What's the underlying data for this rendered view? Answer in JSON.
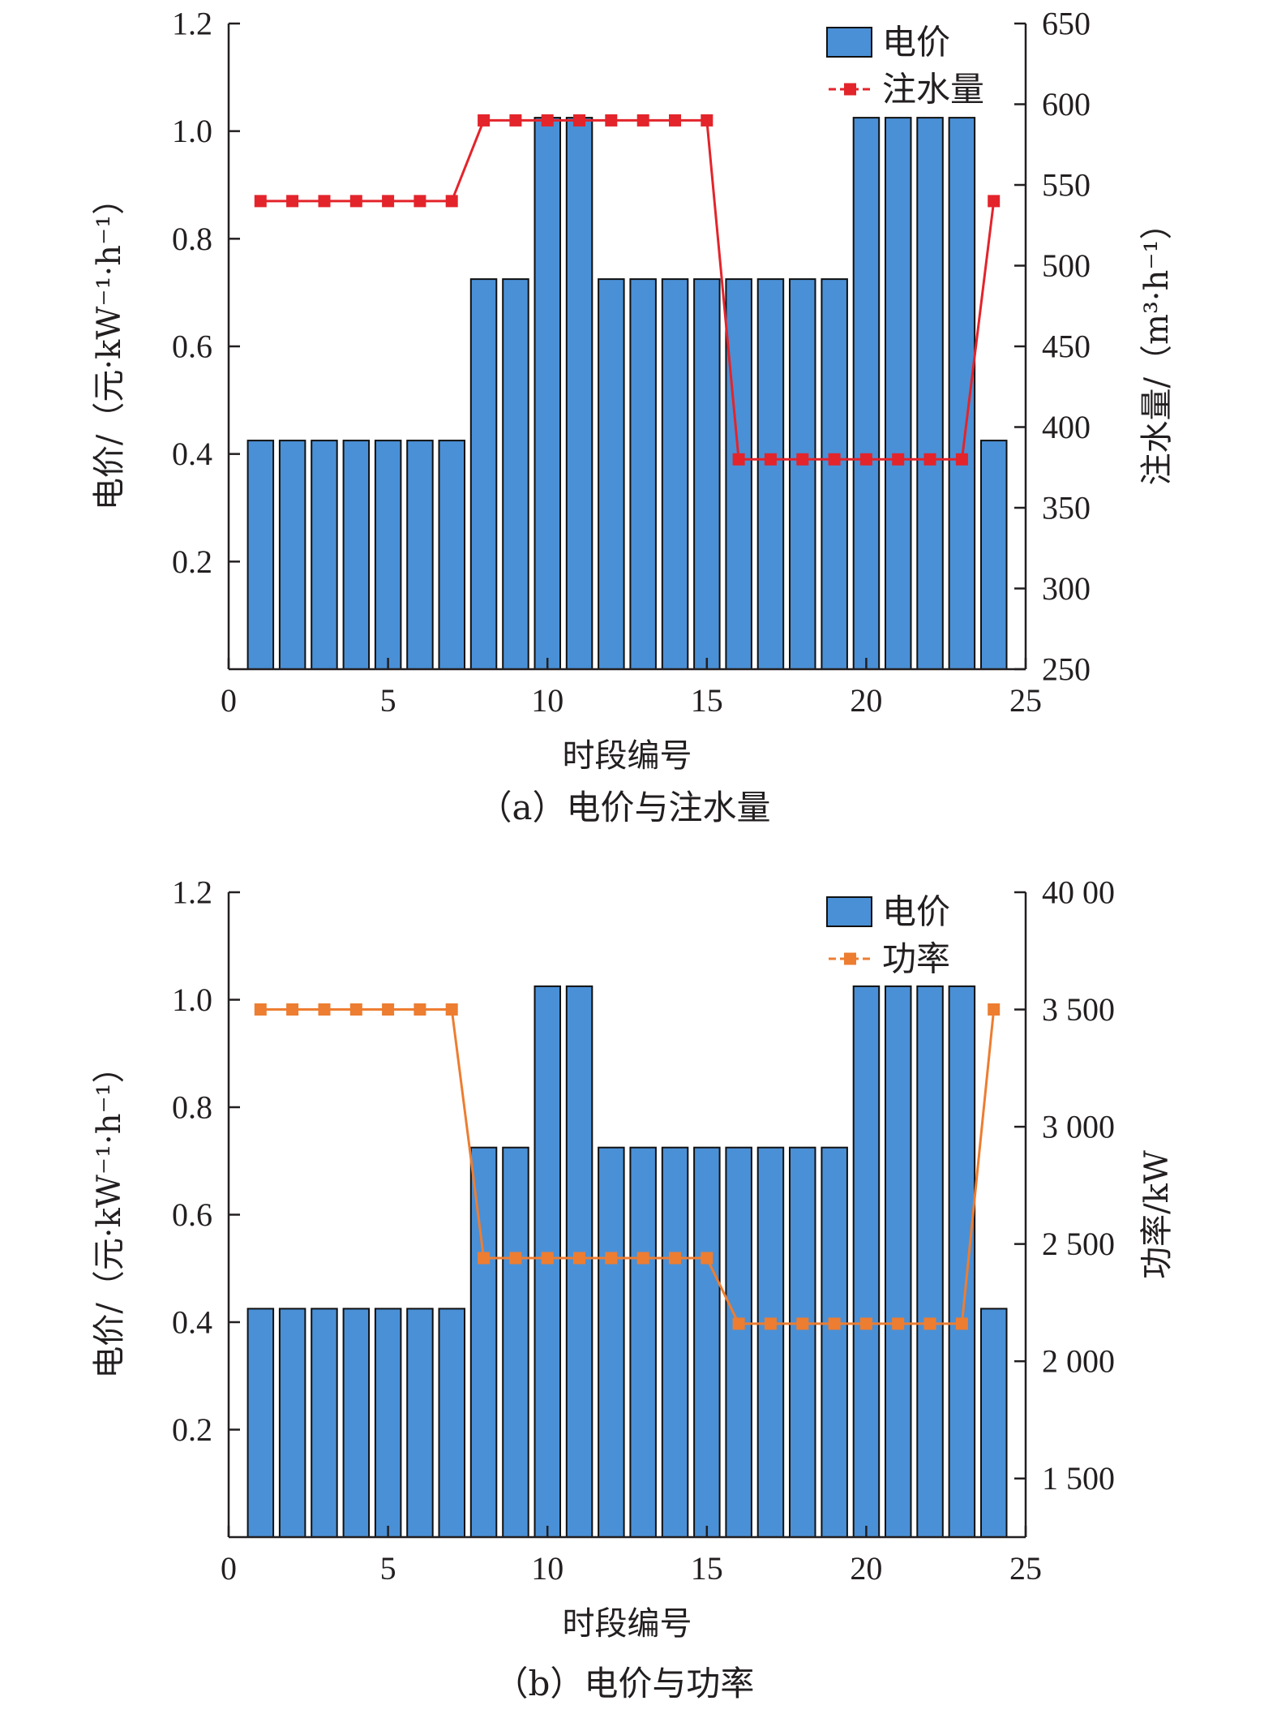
{
  "chart_data": [
    {
      "type": "bar+line",
      "caption": "（a）电价与注水量",
      "xlabel": "时段编号",
      "ylabel_left": "电价/（元·kW⁻¹·h⁻¹）",
      "ylabel_right": "注水量/（m³·h⁻¹）",
      "xlim": [
        0,
        25
      ],
      "ylim_left": [
        0,
        1.2
      ],
      "ylim_right": [
        250,
        650
      ],
      "x_ticks": [
        "0",
        "5",
        "10",
        "15",
        "20",
        "25"
      ],
      "y_left_ticks": [
        "0.2",
        "0.4",
        "0.6",
        "0.8",
        "1.0",
        "1.2"
      ],
      "y_right_ticks": [
        "250",
        "300",
        "350",
        "400",
        "450",
        "500",
        "550",
        "600",
        "650"
      ],
      "legend": [
        "电价",
        "注水量"
      ],
      "colors": {
        "bar": "#4a90d6",
        "line": "#e3242b"
      },
      "x": [
        1,
        2,
        3,
        4,
        5,
        6,
        7,
        8,
        9,
        10,
        11,
        12,
        13,
        14,
        15,
        16,
        17,
        18,
        19,
        20,
        21,
        22,
        23,
        24
      ],
      "series": [
        {
          "name": "电价",
          "axis": "left",
          "values": [
            0.425,
            0.425,
            0.425,
            0.425,
            0.425,
            0.425,
            0.425,
            0.725,
            0.725,
            1.025,
            1.025,
            0.725,
            0.725,
            0.725,
            0.725,
            0.725,
            0.725,
            0.725,
            0.725,
            1.025,
            1.025,
            1.025,
            1.025,
            0.425
          ]
        },
        {
          "name": "注水量",
          "axis": "right",
          "values": [
            540,
            540,
            540,
            540,
            540,
            540,
            540,
            590,
            590,
            590,
            590,
            590,
            590,
            590,
            590,
            380,
            380,
            380,
            380,
            380,
            380,
            380,
            380,
            540
          ]
        }
      ]
    },
    {
      "type": "bar+line",
      "caption": "（b）电价与功率",
      "xlabel": "时段编号",
      "ylabel_left": "电价/（元·kW⁻¹·h⁻¹）",
      "ylabel_right": "功率/kW",
      "xlim": [
        0,
        25
      ],
      "ylim_left": [
        0,
        1.2
      ],
      "ylim_right": [
        1250,
        4000
      ],
      "x_ticks": [
        "0",
        "5",
        "10",
        "15",
        "20",
        "25"
      ],
      "y_left_ticks": [
        "0.2",
        "0.4",
        "0.6",
        "0.8",
        "1.0",
        "1.2"
      ],
      "y_right_ticks": [
        "1 500",
        "2 000",
        "2 500",
        "3 000",
        "3 500",
        "40 00"
      ],
      "legend": [
        "电价",
        "功率"
      ],
      "colors": {
        "bar": "#4a90d6",
        "line": "#ed7d31"
      },
      "x": [
        1,
        2,
        3,
        4,
        5,
        6,
        7,
        8,
        9,
        10,
        11,
        12,
        13,
        14,
        15,
        16,
        17,
        18,
        19,
        20,
        21,
        22,
        23,
        24
      ],
      "series": [
        {
          "name": "电价",
          "axis": "left",
          "values": [
            0.425,
            0.425,
            0.425,
            0.425,
            0.425,
            0.425,
            0.425,
            0.725,
            0.725,
            1.025,
            1.025,
            0.725,
            0.725,
            0.725,
            0.725,
            0.725,
            0.725,
            0.725,
            0.725,
            1.025,
            1.025,
            1.025,
            1.025,
            0.425
          ]
        },
        {
          "name": "功率",
          "axis": "right",
          "values": [
            3500,
            3500,
            3500,
            3500,
            3500,
            3500,
            3500,
            2440,
            2440,
            2440,
            2440,
            2440,
            2440,
            2440,
            2440,
            2160,
            2160,
            2160,
            2160,
            2160,
            2160,
            2160,
            2160,
            3500
          ]
        }
      ]
    }
  ]
}
